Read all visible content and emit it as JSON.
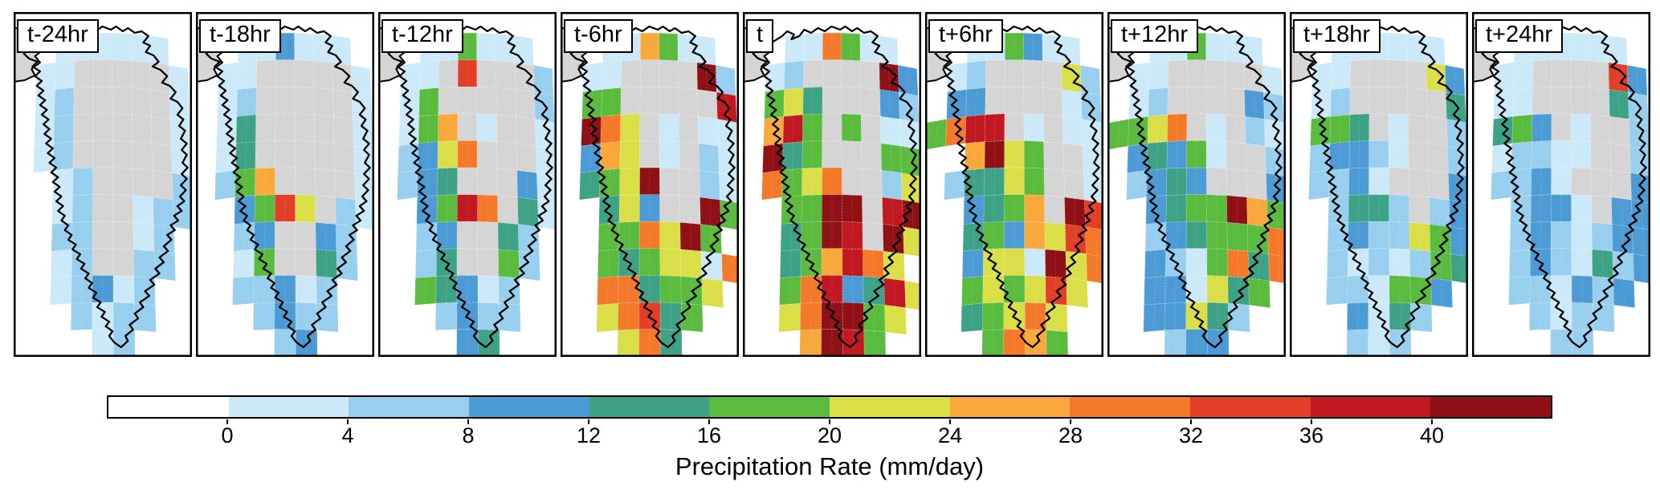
{
  "chart_data": {
    "type": "heatmap",
    "title": "Precipitation Rate (mm/day)",
    "panels": [
      {
        "label": "t-24hr",
        "grid": [
          "..111111.",
          ".11ggggg1",
          ".12ggggg1",
          ".12ggggg1",
          ".12ggggg1",
          "..12gggg2",
          "..12gg122",
          "..22gg12.",
          "..12gg22.",
          "..12312..",
          "...2122..",
          "....12..."
        ]
      },
      {
        "label": "t-18hr",
        "grid": [
          "..113111.",
          ".11ggggg1",
          ".12ggggg1",
          ".14ggggg1",
          ".14ggggg1",
          ".257gggg1",
          "..3596g21",
          "..23gg32.",
          "..15gg42.",
          "..22312..",
          "...2322..",
          "....23..."
        ]
      },
      {
        "label": "t-12hr",
        "grid": [
          "..115111.",
          ".11g9ggg2",
          ".15ggggg2",
          ".157g1gg1",
          ".2368ggg1",
          ".234ggg31",
          "..35a8g41",
          "..23gg42.",
          "..24gg52.",
          "..54312..",
          "...2322..",
          "....34..."
        ]
      },
      {
        "label": "t-6hr",
        "grid": [
          "..117511.",
          ".11ggggb2",
          ".55ggggga",
          ".b86g1g11",
          ".376g1g21",
          ".456bgg21",
          "..463ggb5",
          "..5586b5.",
          "..5456618",
          "..884556.",
          "..68945..",
          "...684..."
        ]
      },
      {
        "label": "t",
        "grid": [
          "..118511.",
          ".12ggggb3",
          ".564ggg32",
          ".7a5g5g11",
          ".b45ggg55",
          ".8568gg26",
          "..55bbgab",
          "..45bagb6",
          "..457a86.",
          "..58a34a6",
          "..68bb56.",
          "...7ba5.."
        ]
      },
      {
        "label": "t+6hr",
        "grid": [
          "..115311.",
          ".12gggg62",
          ".33gggg12",
          "58aag1g11",
          "..7b65gg1",
          ".24465gg1",
          "..3457gb9",
          "..4537698",
          "..3661b68",
          "..565696.",
          "..45686..",
          "...5875.."
        ]
      },
      {
        "label": "t+12hr",
        "grid": [
          "..115111.",
          ".11ggggg1",
          ".12gggg32",
          "5568g1g21",
          ".34351gg2",
          ".2343ggg3",
          "..3455b75",
          "..2345558",
          "..3215848",
          "..331645.",
          "..33642..",
          "...233..."
        ]
      },
      {
        "label": "t+18hr",
        "grid": [
          "..111111.",
          ".11gggg63",
          ".12ggggg4",
          ".554g1gg2",
          ".23321gg2",
          ".2231ggg3",
          "..2442g23",
          "..2322653",
          "..2121254",
          "..221553.",
          "...3142..",
          "...212..."
        ]
      },
      {
        "label": "t+24hr",
        "grid": [
          "..111111.",
          ".11gggg93",
          ".11gggg42",
          ".453g1gg2",
          ".12211gg2",
          ".2231ggg3",
          "..2331g33",
          "..2321233",
          "..2321423",
          "..221323.",
          "...2122..",
          "....22..."
        ]
      }
    ],
    "grid_encoding": {
      "rows": "12 rows north to south, 9 columns west to east per panel",
      "symbols": ". = no data (white ocean/land)  |  g = ice-sheet mask (gray)  |  1-9,a,b = precipitation bins of the colorbar from 0-4 up to >40 mm/day"
    },
    "colorbar": {
      "tick_values": [
        0,
        4,
        8,
        12,
        16,
        20,
        24,
        28,
        32,
        36,
        40
      ],
      "bin_colors": [
        "#ffffff",
        "#cbe9f8",
        "#98cfee",
        "#4d9bd5",
        "#3ea287",
        "#5abb3f",
        "#dadf48",
        "#f9a93c",
        "#f4792b",
        "#e23e28",
        "#c11822",
        "#8f1116"
      ]
    },
    "map_colors": {
      "ice_mask": "#d5d5d5",
      "coastline": "#000000",
      "ocean": "#ffffff",
      "panel_border": "#000000"
    }
  }
}
